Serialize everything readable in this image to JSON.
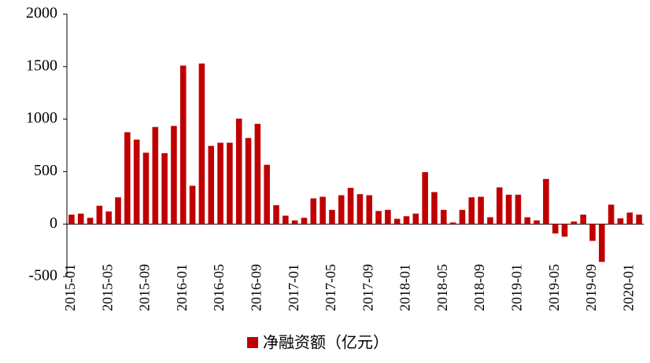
{
  "chart_data": {
    "type": "bar",
    "categories": [
      "2015-01",
      null,
      null,
      null,
      "2015-05",
      null,
      null,
      null,
      "2015-09",
      null,
      null,
      null,
      "2016-01",
      null,
      null,
      null,
      "2016-05",
      null,
      null,
      null,
      "2016-09",
      null,
      null,
      null,
      "2017-01",
      null,
      null,
      null,
      "2017-05",
      null,
      null,
      null,
      "2017-09",
      null,
      null,
      null,
      "2018-01",
      null,
      null,
      null,
      "2018-05",
      null,
      null,
      null,
      "2018-09",
      null,
      null,
      null,
      "2019-01",
      null,
      null,
      null,
      "2019-05",
      null,
      null,
      null,
      "2019-09",
      null,
      null,
      null,
      "2020-01",
      null
    ],
    "series": [
      {
        "name": "净融资额（亿元）",
        "color": "#c00000",
        "values": [
          90,
          100,
          60,
          175,
          120,
          255,
          875,
          805,
          680,
          925,
          675,
          935,
          1510,
          365,
          1530,
          745,
          775,
          775,
          1005,
          820,
          955,
          565,
          180,
          80,
          35,
          60,
          245,
          260,
          135,
          275,
          345,
          285,
          275,
          125,
          135,
          50,
          75,
          100,
          495,
          305,
          135,
          15,
          135,
          255,
          260,
          65,
          350,
          280,
          280,
          65,
          35,
          430,
          -90,
          -120,
          25,
          90,
          -160,
          -360,
          185,
          55,
          110,
          90
        ]
      }
    ],
    "ylim": [
      -500,
      2000
    ],
    "yticks": [
      -500,
      0,
      500,
      1000,
      1500,
      2000
    ],
    "legend": "bottom"
  }
}
